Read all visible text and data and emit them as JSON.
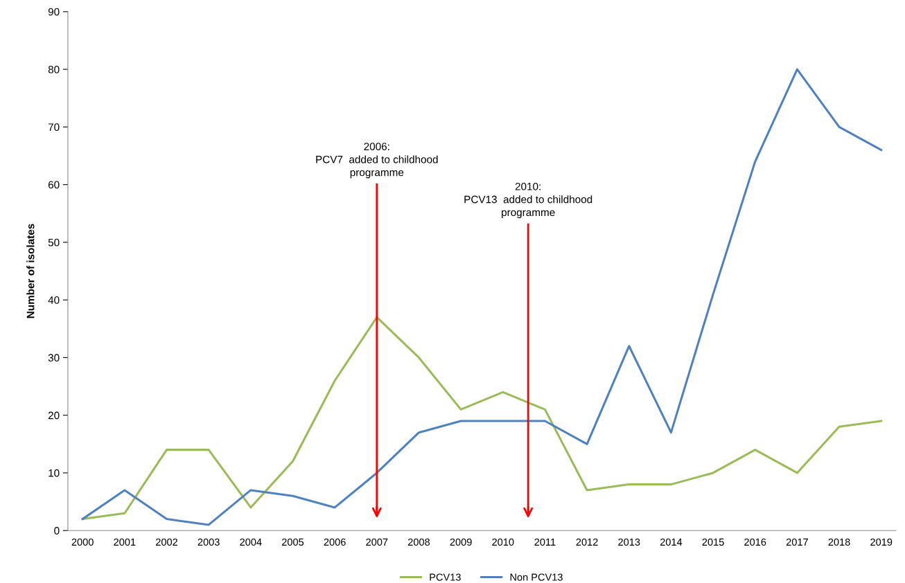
{
  "chart_data": {
    "type": "line",
    "ylabel": "Number of isolates",
    "x": [
      2000,
      2001,
      2002,
      2003,
      2004,
      2005,
      2006,
      2007,
      2008,
      2009,
      2010,
      2011,
      2012,
      2013,
      2014,
      2015,
      2016,
      2017,
      2018,
      2019
    ],
    "xlim": [
      1999.65,
      2019.35
    ],
    "xticks": [
      2000,
      2001,
      2002,
      2003,
      2004,
      2005,
      2006,
      2007,
      2008,
      2009,
      2010,
      2011,
      2012,
      2013,
      2014,
      2015,
      2016,
      2017,
      2018,
      2019
    ],
    "ylim": [
      0,
      90
    ],
    "yticks": [
      0,
      10,
      20,
      30,
      40,
      50,
      60,
      70,
      80,
      90
    ],
    "series": [
      {
        "name": "PCV13",
        "color": "#9bbb59",
        "values": [
          2,
          3,
          14,
          14,
          4,
          12,
          26,
          37,
          30,
          21,
          24,
          21,
          7,
          8,
          8,
          10,
          14,
          10,
          18,
          19
        ]
      },
      {
        "name": "Non PCV13",
        "color": "#4f81bd",
        "values": [
          2,
          7,
          2,
          1,
          7,
          6,
          4,
          10,
          17,
          19,
          19,
          19,
          15,
          32,
          17,
          41,
          64,
          80,
          70,
          66
        ]
      }
    ],
    "ref_lines": [
      {
        "axis": "x",
        "value": 2007,
        "label": "2006:\nPCV7  added to childhood\nprogramme",
        "color": "#ff0000"
      },
      {
        "axis": "x",
        "value": 2010.6,
        "label": "2010:\nPCV13  added to childhood\nprogramme",
        "color": "#ff0000"
      }
    ],
    "grid": false,
    "legend": "bottom",
    "line_style": "solid",
    "marker": "none"
  }
}
